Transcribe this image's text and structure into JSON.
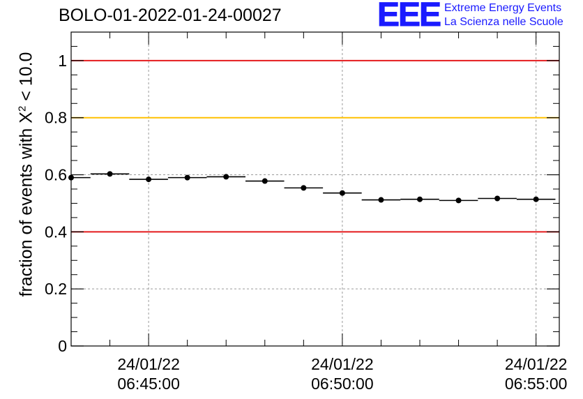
{
  "title": "BOLO-01-2022-01-24-00027",
  "logo": {
    "mark": "EEE",
    "line1": "Extreme Energy Events",
    "line2": "La Scienza nelle Scuole",
    "color": "#1a1aff"
  },
  "chart_data": {
    "type": "scatter",
    "title": "BOLO-01-2022-01-24-00027",
    "ylabel": {
      "prefix": "fraction of events with ",
      "symbol": "X",
      "sup": "2",
      "suffix": " < 10.0"
    },
    "xlabel": "",
    "ylim": [
      0,
      1.1
    ],
    "yticks": [
      0,
      0.2,
      0.4,
      0.6,
      0.8,
      1
    ],
    "yticklabels": [
      "0",
      "0.2",
      "0.4",
      "0.6",
      "0.8",
      "1"
    ],
    "xlim_minutes": [
      -2,
      10.6
    ],
    "xticks_minutes": [
      0,
      5,
      10
    ],
    "xticklabels": [
      {
        "date": "24/01/22",
        "time": "06:45:00"
      },
      {
        "date": "24/01/22",
        "time": "06:50:00"
      },
      {
        "date": "24/01/22",
        "time": "06:55:00"
      }
    ],
    "grid": true,
    "reference_lines": [
      {
        "y": 1.0,
        "color": "#e41a1c"
      },
      {
        "y": 0.8,
        "color": "#ffc000"
      },
      {
        "y": 0.4,
        "color": "#e41a1c"
      }
    ],
    "bin_width_minutes": 1,
    "points": [
      {
        "x": "06:43:00",
        "y": 0.59
      },
      {
        "x": "06:44:00",
        "y": 0.603
      },
      {
        "x": "06:45:00",
        "y": 0.584
      },
      {
        "x": "06:46:00",
        "y": 0.59
      },
      {
        "x": "06:47:00",
        "y": 0.593
      },
      {
        "x": "06:48:00",
        "y": 0.578
      },
      {
        "x": "06:49:00",
        "y": 0.554
      },
      {
        "x": "06:50:00",
        "y": 0.536
      },
      {
        "x": "06:51:00",
        "y": 0.512
      },
      {
        "x": "06:52:00",
        "y": 0.514
      },
      {
        "x": "06:53:00",
        "y": 0.51
      },
      {
        "x": "06:54:00",
        "y": 0.517
      },
      {
        "x": "06:55:00",
        "y": 0.514
      }
    ]
  }
}
